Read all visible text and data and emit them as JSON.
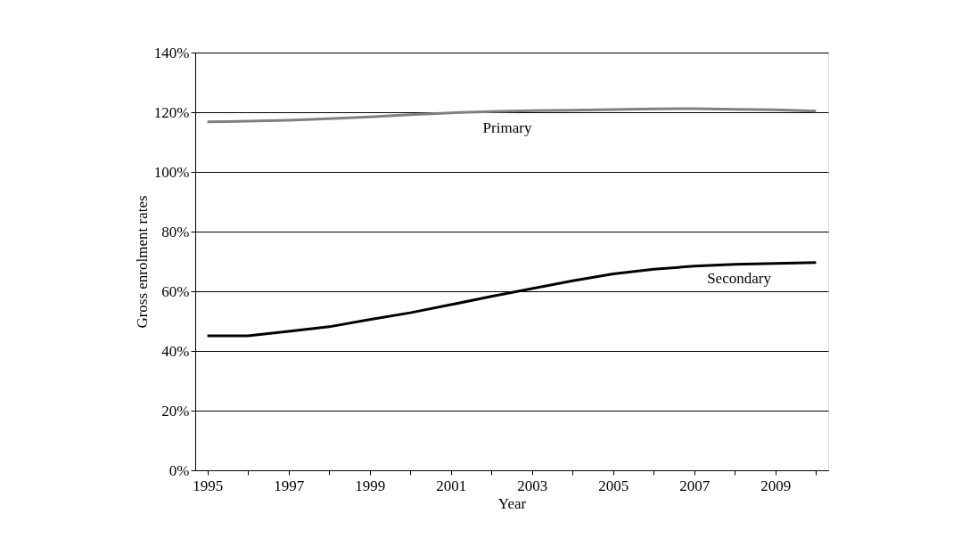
{
  "chart_data": {
    "type": "line",
    "xlabel": "Year",
    "ylabel": "Gross enrolment rates",
    "categories": [
      "1995",
      null,
      "1997",
      null,
      "1999",
      null,
      "2001",
      null,
      "2003",
      null,
      "2005",
      null,
      "2007",
      null,
      "2009",
      null
    ],
    "series": [
      {
        "name": "Primary",
        "color": "#808080",
        "values": [
          116.8,
          117.0,
          117.3,
          117.8,
          118.4,
          119.2,
          119.8,
          120.2,
          120.5,
          120.7,
          120.9,
          121.1,
          121.2,
          121.0,
          120.8,
          120.4
        ]
      },
      {
        "name": "Secondary",
        "color": "#000000",
        "values": [
          45.1,
          45.1,
          46.6,
          48.1,
          50.5,
          52.8,
          55.5,
          58.3,
          60.9,
          63.5,
          65.8,
          67.4,
          68.4,
          69.0,
          69.3,
          69.6
        ]
      }
    ],
    "ylim": [
      0,
      140
    ],
    "yticks": [
      {
        "value": 0,
        "label": "0%"
      },
      {
        "value": 20,
        "label": "20%"
      },
      {
        "value": 40,
        "label": "40%"
      },
      {
        "value": 60,
        "label": "60%"
      },
      {
        "value": 80,
        "label": "80%"
      },
      {
        "value": 100,
        "label": "100%"
      },
      {
        "value": 120,
        "label": "120%"
      },
      {
        "value": 140,
        "label": "140%"
      }
    ],
    "grid": "y",
    "line_style": "solid"
  }
}
